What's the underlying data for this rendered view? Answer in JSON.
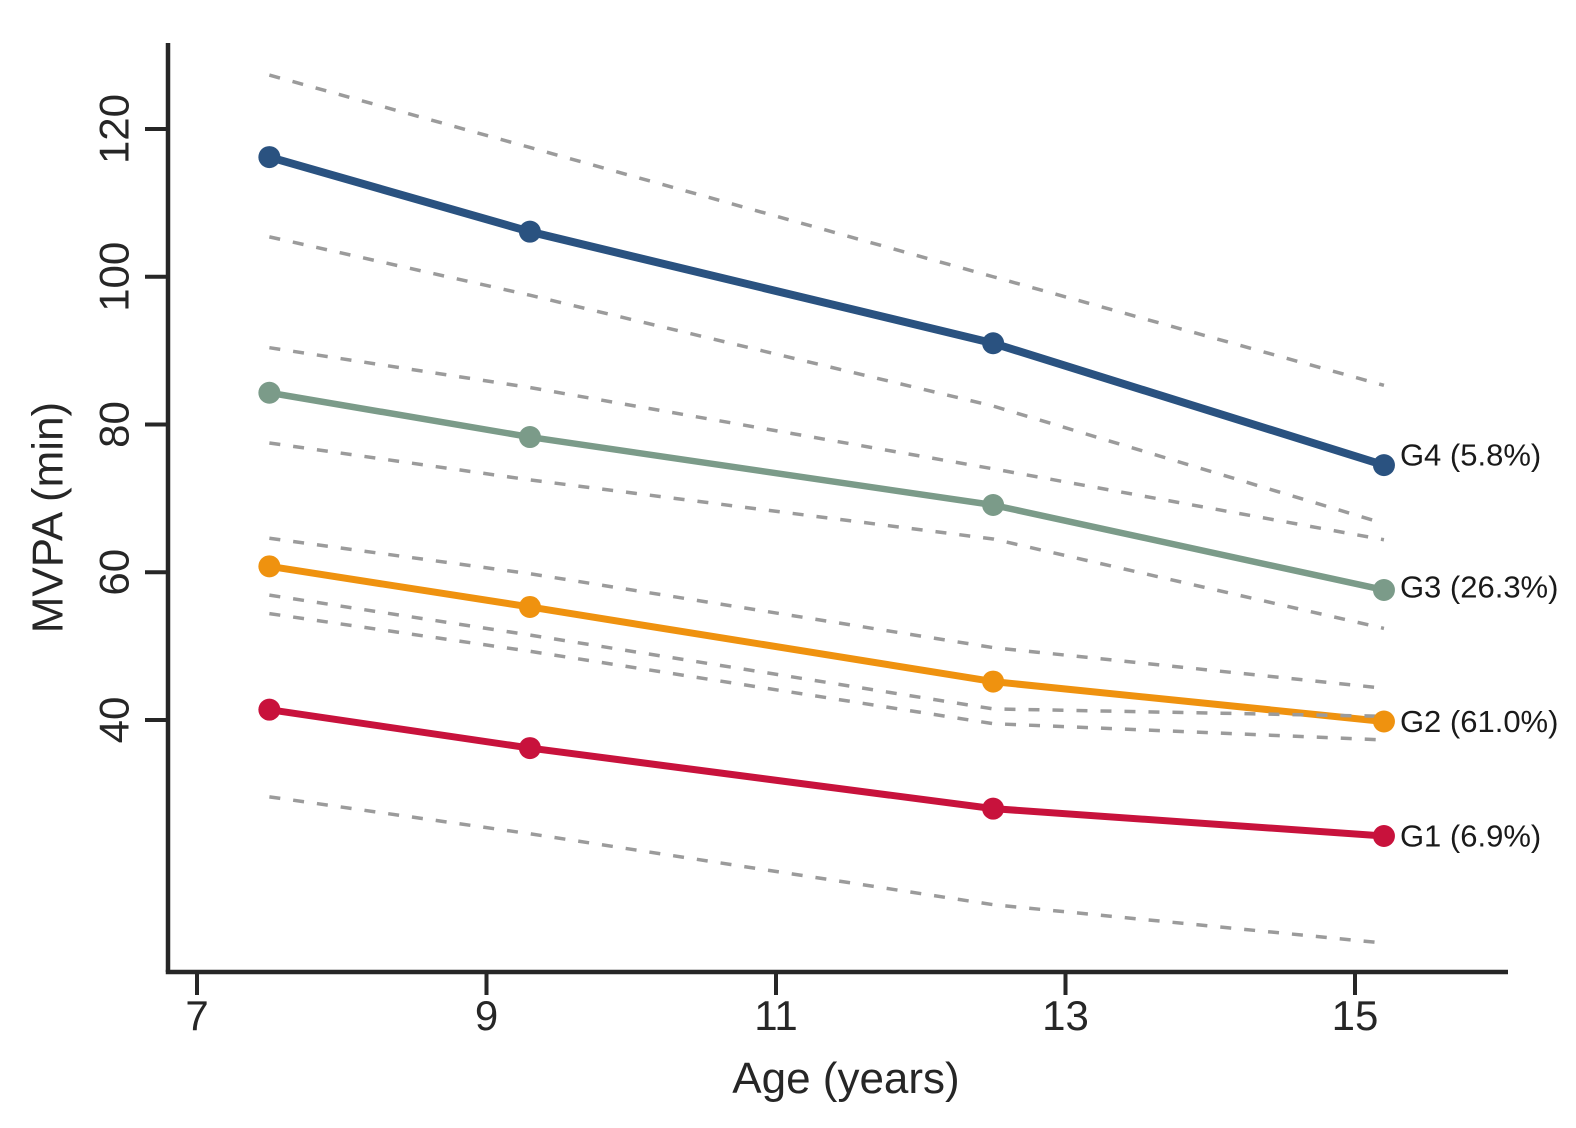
{
  "chart_data": {
    "type": "line",
    "title": "",
    "xlabel": "Age (years)",
    "ylabel": "MVPA (min)",
    "x": [
      7.5,
      9.3,
      12.5,
      15.2
    ],
    "x_ticks": [
      7,
      9,
      11,
      13,
      15
    ],
    "y_ticks": [
      40,
      60,
      80,
      100,
      120
    ],
    "xlim": [
      6.8,
      16.05
    ],
    "ylim": [
      6,
      131
    ],
    "grid": false,
    "legend_position": "right-of-line-end",
    "series": [
      {
        "name": "G4",
        "share_pct": 5.8,
        "label": "G4 (5.8%)",
        "color": "#2A5280",
        "stroke_width": 8,
        "values": [
          116.2,
          106.1,
          91.0,
          74.5
        ],
        "label_dy": -10
      },
      {
        "name": "G3",
        "share_pct": 26.3,
        "label": "G3 (26.3%)",
        "color": "#7B9B89",
        "stroke_width": 6.5,
        "values": [
          84.3,
          78.3,
          69.1,
          57.6
        ],
        "label_dy": -3
      },
      {
        "name": "G2",
        "share_pct": 61.0,
        "label": "G2 (61.0%)",
        "color": "#EF920F",
        "stroke_width": 7,
        "values": [
          60.8,
          55.3,
          45.2,
          39.8
        ],
        "label_dy": 0
      },
      {
        "name": "G1",
        "share_pct": 6.9,
        "label": "G1 (6.9%)",
        "color": "#C8123C",
        "stroke_width": 7,
        "values": [
          41.4,
          36.2,
          28.0,
          24.3
        ],
        "label_dy": 0
      }
    ],
    "ci_lines": [
      {
        "name": "G4-upper",
        "values": [
          127.3,
          117.5,
          100.0,
          85.3
        ]
      },
      {
        "name": "G4-lower",
        "values": [
          105.4,
          97.5,
          82.5,
          66.6
        ]
      },
      {
        "name": "G3-upper",
        "values": [
          90.4,
          85.0,
          74.0,
          64.4
        ]
      },
      {
        "name": "G3-lower",
        "values": [
          77.5,
          72.5,
          64.5,
          52.4
        ]
      },
      {
        "name": "G2-upper",
        "values": [
          64.6,
          59.8,
          49.8,
          44.3
        ]
      },
      {
        "name": "G2-lower",
        "values": [
          56.9,
          51.5,
          41.5,
          40.5
        ]
      },
      {
        "name": "G1-upper",
        "values": [
          54.4,
          49.3,
          39.5,
          37.3
        ]
      },
      {
        "name": "G1-lower",
        "values": [
          29.6,
          24.6,
          15.0,
          9.8
        ]
      }
    ],
    "ci_style": {
      "color": "#9B9B9B",
      "dash": [
        11,
        13
      ],
      "width": 3.5
    },
    "axis_color": "#262626",
    "text_color": "#262626",
    "background": "#ffffff"
  }
}
